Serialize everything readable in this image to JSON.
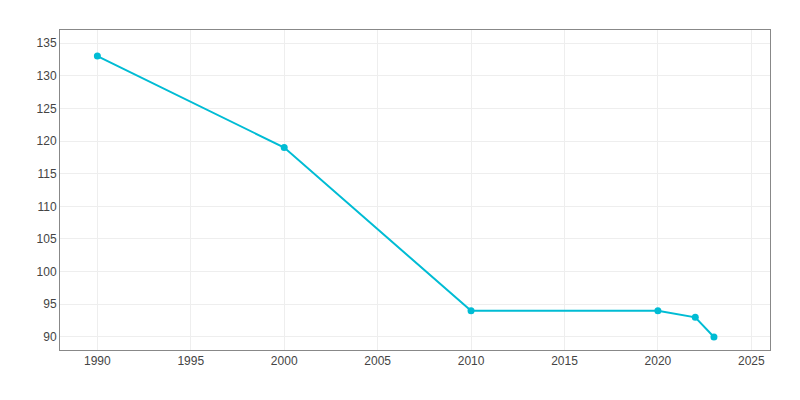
{
  "chart_data": {
    "type": "line",
    "x": [
      1990,
      2000,
      2010,
      2020,
      2022,
      2023
    ],
    "values": [
      133,
      119,
      94,
      94,
      93,
      90
    ],
    "color": "#00bcd4",
    "marker": "circle",
    "xlim": [
      1988,
      2026
    ],
    "ylim": [
      88,
      137
    ],
    "xticks": [
      1990,
      1995,
      2000,
      2005,
      2010,
      2015,
      2020,
      2025
    ],
    "yticks": [
      90,
      95,
      100,
      105,
      110,
      115,
      120,
      125,
      130,
      135
    ],
    "grid": true
  }
}
